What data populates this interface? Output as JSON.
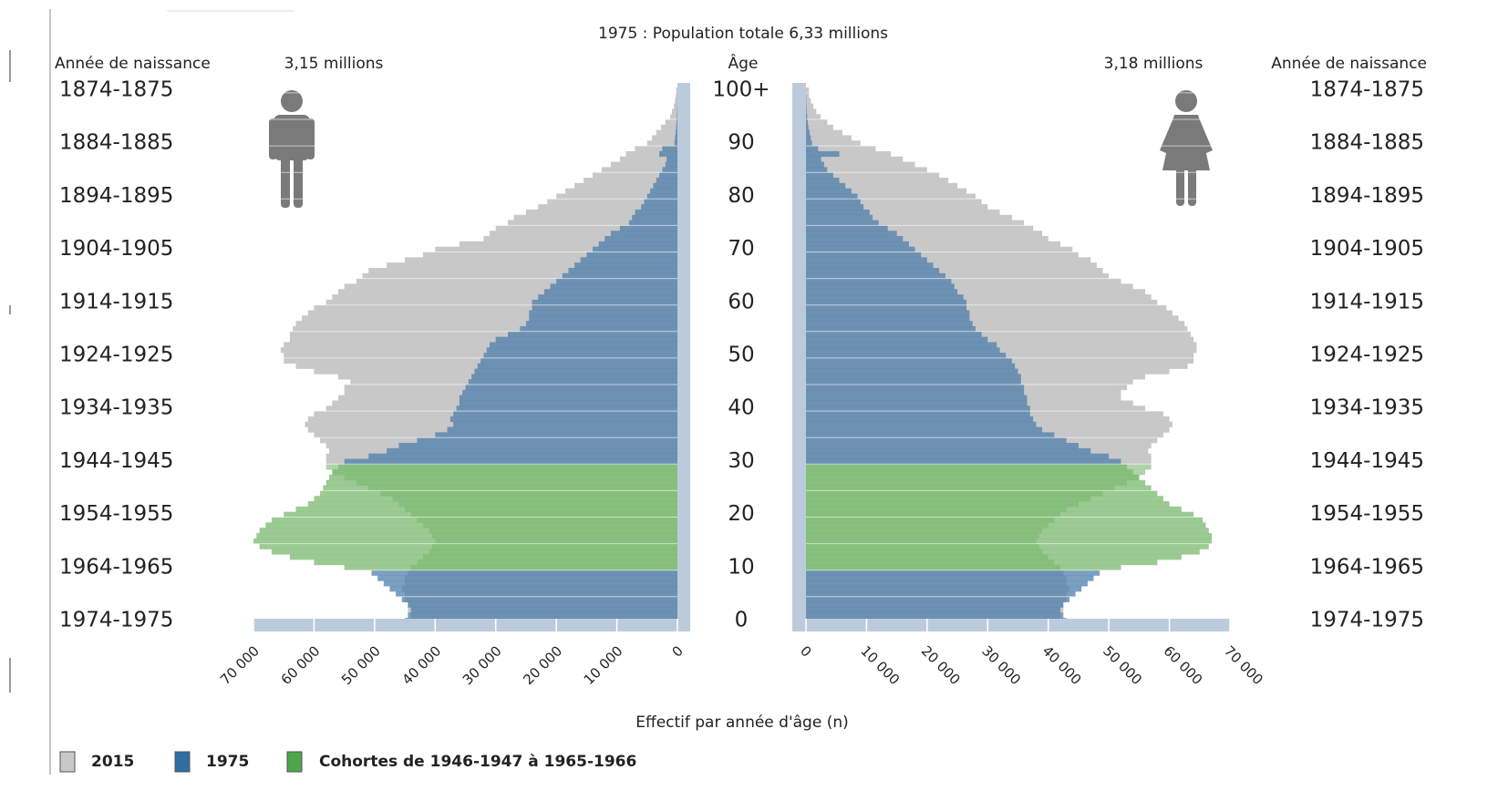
{
  "chart_data": {
    "type": "pyramid",
    "title": "1975 : Population totale 6,33 millions",
    "x_label": "Effectif par année d'âge (n)",
    "age_label": "Âge",
    "birth_year_title": "Année de naissance",
    "left_total": "3,15 millions",
    "right_total": "3,18 millions",
    "ylim": [
      0,
      100
    ],
    "yticks": [
      0,
      10,
      20,
      30,
      40,
      50,
      60,
      70,
      80,
      90,
      {
        "value": 100,
        "label": "100+"
      }
    ],
    "birth_years": [
      "1974-1975",
      "1964-1965",
      "1954-1955",
      "1944-1945",
      "1934-1935",
      "1924-1925",
      "1914-1915",
      "1904-1905",
      "1894-1895",
      "1884-1885",
      "1874-1875"
    ],
    "xlim": [
      0,
      70000
    ],
    "xticks": [
      0,
      {
        "value": 10000,
        "label": "10 000"
      },
      {
        "value": 20000,
        "label": "20 000"
      },
      {
        "value": 30000,
        "label": "30 000"
      },
      {
        "value": 40000,
        "label": "40 000"
      },
      {
        "value": 50000,
        "label": "50 000"
      },
      {
        "value": 60000,
        "label": "60 000"
      },
      {
        "value": 70000,
        "label": "70 000"
      }
    ],
    "highlight": {
      "name": "Cohortes de 1946-1947 à 1965-1966",
      "color": "#79b86f",
      "from": 10,
      "to": 29
    },
    "series": [
      {
        "name": "2015",
        "side": "left",
        "color": "#c8c8c8",
        "values": [
          44000,
          44000,
          44500,
          44500,
          45000,
          45000,
          45500,
          45000,
          45000,
          44500,
          44000,
          43000,
          42000,
          41000,
          40500,
          40000,
          40500,
          41000,
          42000,
          43000,
          44000,
          45000,
          46000,
          47000,
          49000,
          51000,
          53000,
          55000,
          57000,
          58000,
          58000,
          58000,
          57500,
          58000,
          59000,
          60000,
          61000,
          61500,
          61000,
          60000,
          58000,
          57000,
          56000,
          55000,
          55000,
          54000,
          56000,
          60000,
          63000,
          65000,
          65000,
          65500,
          65000,
          64000,
          64000,
          63500,
          63000,
          62000,
          61000,
          60000,
          58000,
          57000,
          56000,
          55000,
          53000,
          52000,
          51000,
          48000,
          45000,
          42000,
          40000,
          36000,
          32000,
          31000,
          30000,
          28000,
          27000,
          25000,
          23000,
          21500,
          20000,
          18500,
          17000,
          15500,
          14000,
          12500,
          11000,
          9500,
          8500,
          7000,
          5000,
          4200,
          3500,
          2700,
          2000,
          1200,
          900,
          600,
          400,
          250,
          200
        ]
      },
      {
        "name": "1975",
        "side": "left",
        "color": "#4f7fab",
        "values": [
          45000,
          44500,
          44000,
          44500,
          45500,
          46500,
          47500,
          48500,
          49500,
          50500,
          55000,
          60000,
          64000,
          67000,
          69000,
          70000,
          69500,
          69000,
          68000,
          67000,
          65000,
          63000,
          61000,
          60000,
          59000,
          58500,
          58000,
          57500,
          57000,
          56000,
          55000,
          51000,
          48000,
          46000,
          43000,
          40000,
          38000,
          37000,
          37500,
          37000,
          36500,
          36000,
          36000,
          35500,
          35000,
          34500,
          34000,
          33500,
          33000,
          32500,
          32000,
          31500,
          31000,
          30000,
          28000,
          26000,
          25000,
          24500,
          24500,
          24000,
          24000,
          23000,
          22000,
          21000,
          20000,
          19000,
          18000,
          17000,
          16000,
          15000,
          14000,
          13000,
          12000,
          11000,
          9500,
          8000,
          7500,
          7000,
          6000,
          5500,
          5000,
          4500,
          4000,
          3500,
          3000,
          2500,
          2000,
          1800,
          3000,
          2500,
          500,
          400,
          300,
          200,
          150,
          100,
          60,
          40,
          20,
          10,
          10
        ]
      },
      {
        "name": "2015",
        "side": "right",
        "color": "#c8c8c8",
        "values": [
          42000,
          42000,
          42500,
          42500,
          43000,
          43000,
          43500,
          43000,
          43000,
          42500,
          42000,
          41000,
          40000,
          39000,
          38500,
          38000,
          38500,
          39000,
          40000,
          41000,
          42000,
          43000,
          45000,
          47000,
          49000,
          51000,
          53000,
          55000,
          56000,
          57000,
          57000,
          57000,
          56500,
          57000,
          58000,
          59000,
          60000,
          60500,
          60000,
          59000,
          56000,
          54000,
          52000,
          52000,
          53000,
          54000,
          56000,
          60000,
          63000,
          64000,
          64000,
          64500,
          64500,
          64000,
          63500,
          63000,
          62500,
          61500,
          60500,
          59500,
          58000,
          57000,
          56000,
          54000,
          52000,
          50000,
          49000,
          48000,
          47000,
          45000,
          44000,
          42000,
          40000,
          39000,
          37500,
          36000,
          34000,
          32000,
          30000,
          29000,
          28000,
          26500,
          25000,
          23500,
          22000,
          20000,
          18000,
          16000,
          14000,
          11500,
          9000,
          7500,
          6000,
          4500,
          3500,
          2400,
          1700,
          1200,
          800,
          500,
          500
        ]
      },
      {
        "name": "1975",
        "side": "right",
        "color": "#4f7fab",
        "values": [
          43000,
          42500,
          42000,
          42500,
          43500,
          44500,
          45500,
          46500,
          47500,
          48500,
          52000,
          58000,
          62000,
          65000,
          66500,
          67000,
          67000,
          66500,
          66000,
          65500,
          64000,
          62000,
          60000,
          59000,
          58000,
          57000,
          56000,
          55000,
          54000,
          53000,
          52000,
          50000,
          47000,
          45000,
          43000,
          41000,
          39000,
          38000,
          37500,
          37000,
          37000,
          36500,
          36500,
          36000,
          36000,
          35500,
          35500,
          35000,
          34500,
          34000,
          33000,
          32000,
          31500,
          30000,
          29000,
          28000,
          27500,
          27000,
          27000,
          26500,
          26500,
          26000,
          25000,
          24500,
          24000,
          23000,
          22000,
          21000,
          20000,
          19000,
          18000,
          17000,
          16000,
          15000,
          13500,
          12000,
          11000,
          10500,
          9500,
          9000,
          8500,
          7500,
          6500,
          5500,
          4500,
          3500,
          3000,
          2500,
          5500,
          2000,
          1000,
          800,
          600,
          400,
          300,
          200,
          120,
          80,
          50,
          30,
          20
        ]
      }
    ]
  }
}
